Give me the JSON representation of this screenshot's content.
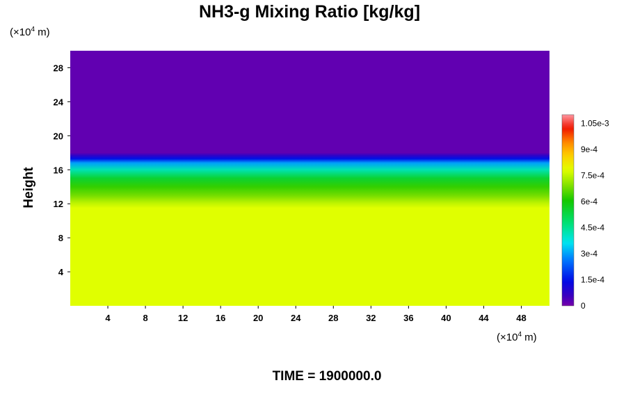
{
  "chart_data": {
    "type": "heatmap",
    "title": "NH3-g Mixing Ratio [kg/kg]",
    "xlabel": "",
    "ylabel": "Height",
    "x_unit": {
      "prefix": "(×10",
      "exp": "4",
      "suffix": " m)"
    },
    "y_unit": {
      "prefix": "(×10",
      "exp": "4",
      "suffix": " m)"
    },
    "xlim": [
      0,
      51
    ],
    "ylim": [
      0,
      30
    ],
    "x_ticks": [
      4,
      8,
      12,
      16,
      20,
      24,
      28,
      32,
      36,
      40,
      44,
      48
    ],
    "y_ticks": [
      4,
      8,
      12,
      16,
      20,
      24,
      28
    ],
    "colorbar": {
      "min": 0,
      "max": 0.0011,
      "tick_values": [
        0,
        0.00015,
        0.0003,
        0.00045,
        0.0006,
        0.00075,
        0.0009,
        0.00105
      ],
      "tick_labels": [
        "0",
        "1.5e-4",
        "3e-4",
        "4.5e-4",
        "6e-4",
        "7.5e-4",
        "9e-4",
        "1.05e-3"
      ]
    },
    "field_profile": {
      "height": [
        0,
        11.5,
        12.2,
        13.0,
        14.0,
        15.0,
        16.0,
        16.8,
        17.3,
        17.7,
        18.0,
        30
      ],
      "mixing_ratio": [
        0.00078,
        0.00078,
        0.00074,
        0.00068,
        0.00063,
        0.00055,
        0.00042,
        0.0003,
        0.00015,
        7e-05,
        2e-05,
        2e-05
      ]
    },
    "footer": "TIME = 1900000.0"
  }
}
